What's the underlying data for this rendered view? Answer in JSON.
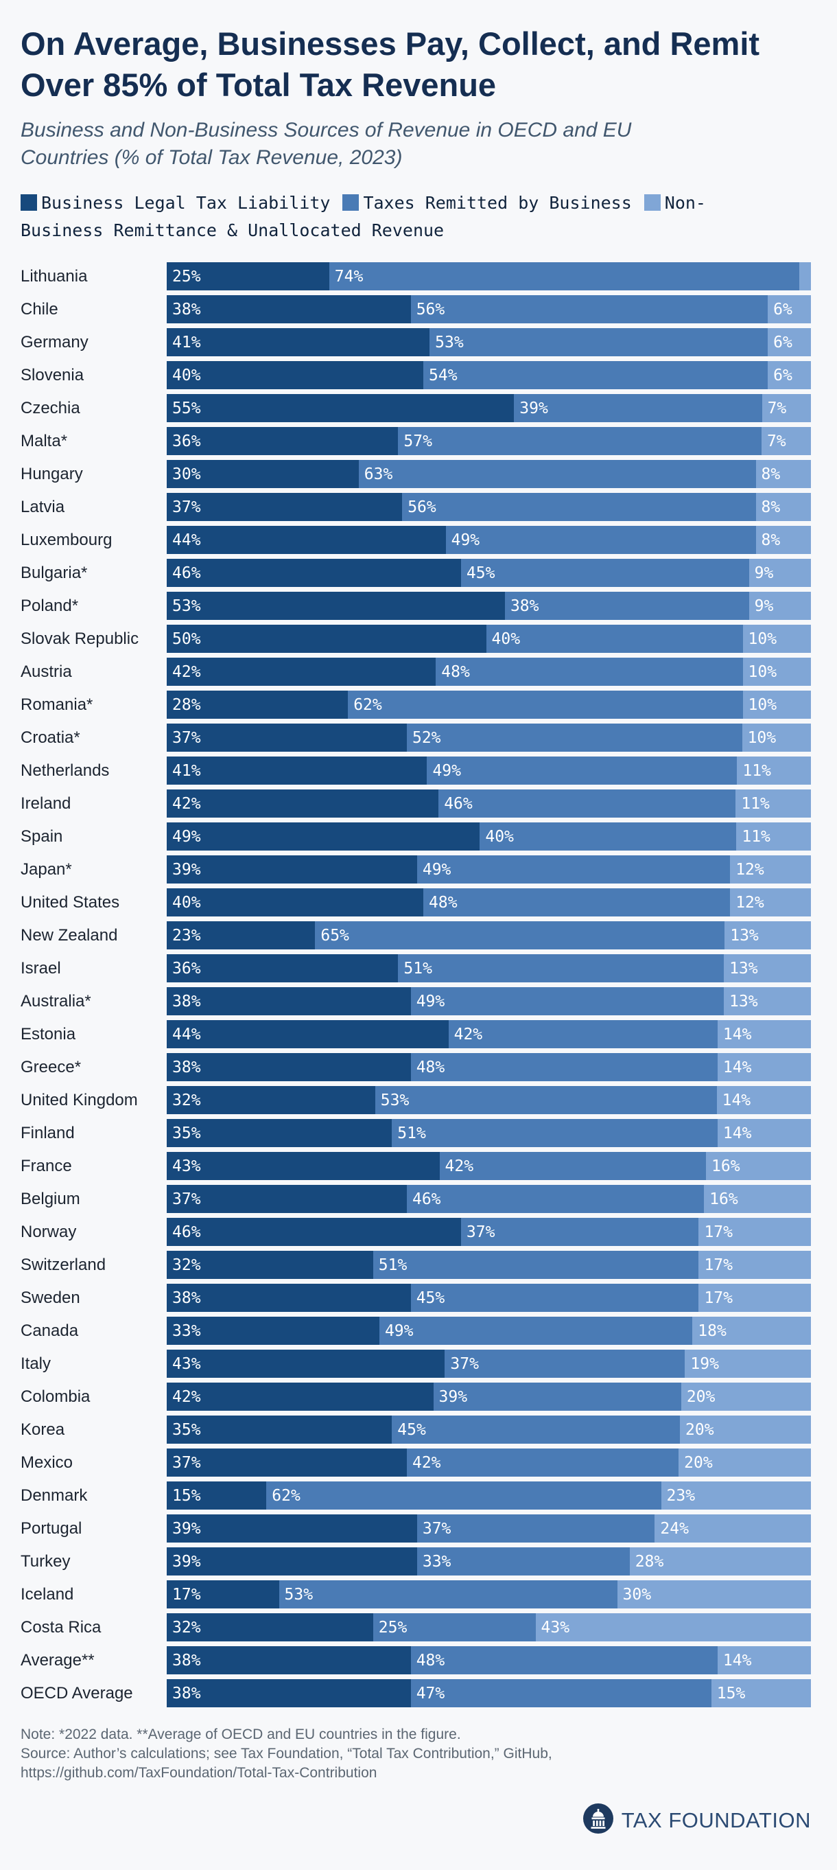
{
  "header": {
    "title": "On Average, Businesses Pay, Collect, and Remit Over 85% of Total Tax Revenue",
    "subtitle": "Business and Non-Business Sources of Revenue in OECD and EU Countries (% of Total Tax Revenue, 2023)"
  },
  "chart_data": {
    "type": "bar",
    "stacked": true,
    "orientation": "horizontal",
    "unit": "%",
    "xlim": [
      0,
      100
    ],
    "legend_position": "top",
    "min_label_percent": 5,
    "categories": [
      "Lithuania",
      "Chile",
      "Germany",
      "Slovenia",
      "Czechia",
      "Malta*",
      "Hungary",
      "Latvia",
      "Luxembourg",
      "Bulgaria*",
      "Poland*",
      "Slovak Republic",
      "Austria",
      "Romania*",
      "Croatia*",
      "Netherlands",
      "Ireland",
      "Spain",
      "Japan*",
      "United States",
      "New Zealand",
      "Israel",
      "Australia*",
      "Estonia",
      "Greece*",
      "United Kingdom",
      "Finland",
      "France",
      "Belgium",
      "Norway",
      "Switzerland",
      "Sweden",
      "Canada",
      "Italy",
      "Colombia",
      "Korea",
      "Mexico",
      "Denmark",
      "Portugal",
      "Turkey",
      "Iceland",
      "Costa Rica",
      "Average**",
      "OECD Average"
    ],
    "series": [
      {
        "name": "Business Legal Tax Liability",
        "color": "#17497d",
        "values": [
          25,
          38,
          41,
          40,
          55,
          36,
          30,
          37,
          44,
          46,
          53,
          50,
          42,
          28,
          37,
          41,
          42,
          49,
          39,
          40,
          23,
          36,
          38,
          44,
          38,
          32,
          35,
          43,
          37,
          46,
          32,
          38,
          33,
          43,
          42,
          35,
          37,
          15,
          39,
          39,
          17,
          32,
          38,
          38
        ]
      },
      {
        "name": "Taxes Remitted by Business",
        "color": "#4a7bb5",
        "values": [
          74,
          56,
          53,
          54,
          39,
          57,
          63,
          56,
          49,
          45,
          38,
          40,
          48,
          62,
          52,
          49,
          46,
          40,
          49,
          48,
          65,
          51,
          49,
          42,
          48,
          53,
          51,
          42,
          46,
          37,
          51,
          45,
          49,
          37,
          39,
          45,
          42,
          62,
          37,
          33,
          53,
          25,
          48,
          47
        ]
      },
      {
        "name": "Non-Business Remittance & Unallocated Revenue",
        "color": "#80a6d6",
        "values": [
          1,
          6,
          6,
          6,
          7,
          7,
          8,
          8,
          8,
          9,
          9,
          10,
          10,
          10,
          10,
          11,
          11,
          11,
          12,
          12,
          13,
          13,
          13,
          14,
          14,
          14,
          14,
          16,
          16,
          17,
          17,
          17,
          18,
          19,
          20,
          20,
          20,
          23,
          24,
          28,
          30,
          43,
          14,
          15
        ]
      }
    ]
  },
  "notes": {
    "note": "Note: *2022 data. **Average of OECD and EU countries in the figure.",
    "source": "Source: Author’s calculations; see Tax Foundation, “Total Tax Contribution,” GitHub,",
    "source_url": "https://github.com/TaxFoundation/Total-Tax-Contribution"
  },
  "footer": {
    "brand": "TAX FOUNDATION",
    "brand_color": "#2b4a73",
    "logo_color": "#1e3a5f"
  }
}
